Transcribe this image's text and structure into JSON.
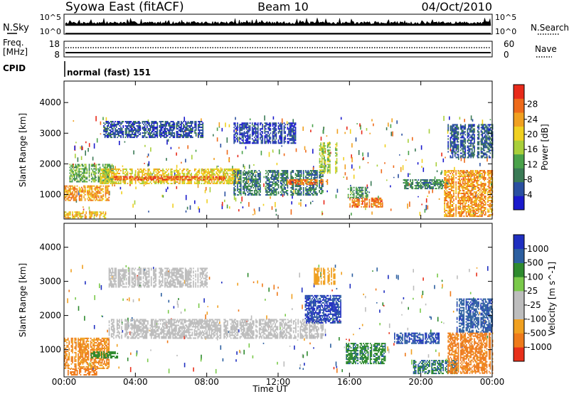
{
  "header": {
    "site": "Syowa East (fitACF)",
    "beam": "Beam 10",
    "date": "04/Oct/2010"
  },
  "strips": {
    "nsky_label": "N.Sky",
    "nsearch_label": "N.Search",
    "nsky_ticks": [
      "10^5",
      "10^0"
    ],
    "freq_label_1": "Freq.",
    "freq_label_2": "[MHz]",
    "freq_ticks": [
      "18",
      "8"
    ],
    "nave_label": "Nave",
    "nave_ticks": [
      "60",
      "0"
    ],
    "cpid_label": "CPID",
    "cpid_value": "normal (fast) 151"
  },
  "colors": {
    "power": [
      "#1a1acc",
      "#2a4fa0",
      "#3a7a55",
      "#4aa24a",
      "#a8cf3a",
      "#f0d020",
      "#f0a020",
      "#ee6a1a",
      "#e82a1a"
    ],
    "velocity": [
      "#1f2fc0",
      "#2c5fa0",
      "#2e8a2e",
      "#7ac94a",
      "#bdbdbd",
      "#bdbdbd",
      "#f0a020",
      "#ee7a1a",
      "#e8301a"
    ]
  },
  "chart_data": [
    {
      "type": "heatmap",
      "title": "Power",
      "xlabel": "Time UT",
      "ylabel": "Slant Range [km]",
      "xlim": [
        "00:00",
        "24:00"
      ],
      "x_ticks": [
        "00:00",
        "04:00",
        "08:00",
        "12:00",
        "16:00",
        "20:00",
        "00:00"
      ],
      "ylim": [
        200,
        4700
      ],
      "y_ticks": [
        1000,
        2000,
        3000,
        4000
      ],
      "colorbar": {
        "label": "Power [dB]",
        "ticks": [
          "4",
          "8",
          "12",
          "16",
          "20",
          "24",
          "28"
        ],
        "range": [
          0,
          30
        ]
      },
      "regions": [
        {
          "t_start": 0.0,
          "t_end": 2.5,
          "range_km": [
            800,
            1300
          ],
          "value": 22
        },
        {
          "t_start": 0.0,
          "t_end": 2.3,
          "range_km": [
            250,
            450
          ],
          "value": 20
        },
        {
          "t_start": 0.3,
          "t_end": 2.8,
          "range_km": [
            1400,
            2000
          ],
          "value": 12
        },
        {
          "t_start": 2.0,
          "t_end": 9.8,
          "range_km": [
            1350,
            1850
          ],
          "value": 18
        },
        {
          "t_start": 2.8,
          "t_end": 9.0,
          "range_km": [
            1500,
            1600
          ],
          "value": 26
        },
        {
          "t_start": 9.5,
          "t_end": 14.5,
          "range_km": [
            1000,
            1800
          ],
          "value": 8
        },
        {
          "t_start": 12.5,
          "t_end": 14.8,
          "range_km": [
            1350,
            1500
          ],
          "value": 24
        },
        {
          "t_start": 2.2,
          "t_end": 7.8,
          "range_km": [
            2850,
            3400
          ],
          "value": 5
        },
        {
          "t_start": 9.5,
          "t_end": 13.0,
          "range_km": [
            2700,
            3350
          ],
          "value": 4
        },
        {
          "t_start": 14.3,
          "t_end": 15.3,
          "range_km": [
            1700,
            2700
          ],
          "value": 15
        },
        {
          "t_start": 16.0,
          "t_end": 17.8,
          "range_km": [
            600,
            900
          ],
          "value": 24
        },
        {
          "t_start": 15.9,
          "t_end": 17.0,
          "range_km": [
            900,
            1250
          ],
          "value": 10
        },
        {
          "t_start": 19.0,
          "t_end": 21.5,
          "range_km": [
            1200,
            1500
          ],
          "value": 9
        },
        {
          "t_start": 21.3,
          "t_end": 24.0,
          "range_km": [
            300,
            1800
          ],
          "value": 22
        },
        {
          "t_start": 21.5,
          "t_end": 24.0,
          "range_km": [
            2200,
            3300
          ],
          "value": 6
        }
      ]
    },
    {
      "type": "heatmap",
      "title": "Velocity",
      "xlabel": "Time UT",
      "ylabel": "Slant Range [km]",
      "xlim": [
        "00:00",
        "24:00"
      ],
      "x_ticks": [
        "00:00",
        "04:00",
        "08:00",
        "12:00",
        "16:00",
        "20:00",
        "00:00"
      ],
      "ylim": [
        200,
        4700
      ],
      "y_ticks": [
        1000,
        2000,
        3000,
        4000
      ],
      "colorbar": {
        "label": "Velocity [m s^-1]",
        "ticks": [
          "1000",
          "500",
          "100",
          "25",
          "-25",
          "-100",
          "-500",
          "-1000"
        ]
      },
      "regions": [
        {
          "t_start": 0.0,
          "t_end": 2.5,
          "range_km": [
            450,
            1350
          ],
          "value": -300
        },
        {
          "t_start": 0.2,
          "t_end": 1.8,
          "range_km": [
            250,
            450
          ],
          "value": -500
        },
        {
          "t_start": 1.5,
          "t_end": 3.0,
          "range_km": [
            750,
            950
          ],
          "value": 100
        },
        {
          "t_start": 2.5,
          "t_end": 14.5,
          "range_km": [
            1350,
            1900
          ],
          "value": 0
        },
        {
          "t_start": 2.5,
          "t_end": 8.0,
          "range_km": [
            2850,
            3400
          ],
          "value": 0
        },
        {
          "t_start": 13.5,
          "t_end": 15.5,
          "range_km": [
            1800,
            2600
          ],
          "value": 800
        },
        {
          "t_start": 14.0,
          "t_end": 15.2,
          "range_km": [
            2900,
            3400
          ],
          "value": -200
        },
        {
          "t_start": 15.8,
          "t_end": 18.0,
          "range_km": [
            600,
            1200
          ],
          "value": 250
        },
        {
          "t_start": 18.5,
          "t_end": 21.0,
          "range_km": [
            1200,
            1500
          ],
          "value": 700
        },
        {
          "t_start": 19.5,
          "t_end": 22.0,
          "range_km": [
            300,
            700
          ],
          "value": 300
        },
        {
          "t_start": 21.5,
          "t_end": 24.0,
          "range_km": [
            300,
            1500
          ],
          "value": -400
        },
        {
          "t_start": 22.0,
          "t_end": 24.0,
          "range_km": [
            1500,
            2500
          ],
          "value": 600
        }
      ]
    }
  ]
}
